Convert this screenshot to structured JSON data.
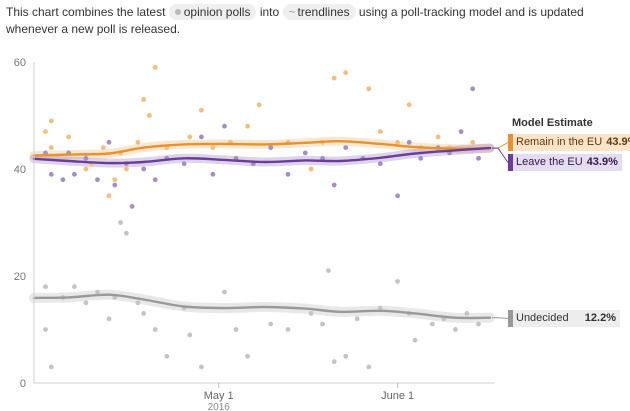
{
  "intro": {
    "before": "This chart combines the latest",
    "chip_polls": "opinion polls",
    "middle": "into",
    "chip_trend": "trendlines",
    "after": "using a poll-tracking model and is updated whenever a new poll is released."
  },
  "legend": {
    "title": "Model Estimate",
    "remain_label": "Remain in the EU",
    "remain_value": "43.9%",
    "leave_label": "Leave the EU",
    "leave_value": "43.9%",
    "undecided_label": "Undecided",
    "undecided_value": "12.2%"
  },
  "colors": {
    "remain": "#e8922e",
    "remain_point": "#f2be7e",
    "leave": "#6a3d9a",
    "leave_point": "#a48fc4",
    "undecided": "#999999",
    "undecided_point": "#c4c4c4",
    "band": "#e8e8e8"
  },
  "chart_data": {
    "type": "scatter",
    "x_range": [
      "2016-03-30",
      "2016-06-17"
    ],
    "y_range": [
      0,
      60
    ],
    "y_ticks": [
      0,
      20,
      40,
      60
    ],
    "x_ticks": [
      {
        "date": "2016-05-01",
        "label": "May 1",
        "sublabel": "2016"
      },
      {
        "date": "2016-06-01",
        "label": "June 1",
        "sublabel": ""
      }
    ],
    "grid": false,
    "series": [
      {
        "name": "Remain in the EU",
        "trend": [
          [
            "2016-03-30",
            42.5
          ],
          [
            "2016-04-05",
            42.7
          ],
          [
            "2016-04-12",
            42.9
          ],
          [
            "2016-04-18",
            44
          ],
          [
            "2016-04-25",
            44.6
          ],
          [
            "2016-05-02",
            44.7
          ],
          [
            "2016-05-09",
            44.6
          ],
          [
            "2016-05-16",
            44.9
          ],
          [
            "2016-05-22",
            45.2
          ],
          [
            "2016-05-29",
            44.7
          ],
          [
            "2016-06-04",
            44.1
          ],
          [
            "2016-06-11",
            43.8
          ],
          [
            "2016-06-17",
            43.9
          ]
        ],
        "points": [
          [
            "2016-04-01",
            47
          ],
          [
            "2016-04-02",
            49
          ],
          [
            "2016-04-02",
            44
          ],
          [
            "2016-04-05",
            46
          ],
          [
            "2016-04-08",
            40
          ],
          [
            "2016-04-09",
            41
          ],
          [
            "2016-04-11",
            44
          ],
          [
            "2016-04-12",
            35
          ],
          [
            "2016-04-13",
            38
          ],
          [
            "2016-04-14",
            43
          ],
          [
            "2016-04-15",
            40
          ],
          [
            "2016-04-17",
            45
          ],
          [
            "2016-04-18",
            53
          ],
          [
            "2016-04-19",
            50
          ],
          [
            "2016-04-20",
            59
          ],
          [
            "2016-04-22",
            44
          ],
          [
            "2016-04-26",
            46
          ],
          [
            "2016-04-28",
            51
          ],
          [
            "2016-04-30",
            44
          ],
          [
            "2016-05-03",
            45
          ],
          [
            "2016-05-06",
            48
          ],
          [
            "2016-05-08",
            52
          ],
          [
            "2016-05-10",
            44
          ],
          [
            "2016-05-13",
            45
          ],
          [
            "2016-05-17",
            40
          ],
          [
            "2016-05-19",
            45
          ],
          [
            "2016-05-21",
            57
          ],
          [
            "2016-05-23",
            58
          ],
          [
            "2016-05-27",
            55
          ],
          [
            "2016-05-29",
            47
          ],
          [
            "2016-06-01",
            45
          ],
          [
            "2016-06-03",
            52
          ],
          [
            "2016-06-05",
            44
          ],
          [
            "2016-06-08",
            46
          ],
          [
            "2016-06-10",
            44
          ],
          [
            "2016-06-12",
            47
          ],
          [
            "2016-06-14",
            45
          ],
          [
            "2016-06-15",
            42
          ]
        ]
      },
      {
        "name": "Leave the EU",
        "trend": [
          [
            "2016-03-30",
            41.9
          ],
          [
            "2016-04-05",
            41.5
          ],
          [
            "2016-04-12",
            41.1
          ],
          [
            "2016-04-18",
            41.3
          ],
          [
            "2016-04-25",
            42
          ],
          [
            "2016-05-02",
            41.7
          ],
          [
            "2016-05-09",
            41.3
          ],
          [
            "2016-05-16",
            41.6
          ],
          [
            "2016-05-22",
            41.5
          ],
          [
            "2016-05-29",
            42.1
          ],
          [
            "2016-06-04",
            42.9
          ],
          [
            "2016-06-11",
            43.5
          ],
          [
            "2016-06-17",
            43.9
          ]
        ],
        "points": [
          [
            "2016-04-01",
            43
          ],
          [
            "2016-04-02",
            39
          ],
          [
            "2016-04-04",
            38
          ],
          [
            "2016-04-05",
            43
          ],
          [
            "2016-04-06",
            39
          ],
          [
            "2016-04-08",
            42
          ],
          [
            "2016-04-10",
            38
          ],
          [
            "2016-04-12",
            45
          ],
          [
            "2016-04-13",
            37
          ],
          [
            "2016-04-15",
            41
          ],
          [
            "2016-04-16",
            33
          ],
          [
            "2016-04-18",
            40
          ],
          [
            "2016-04-20",
            38
          ],
          [
            "2016-04-22",
            42
          ],
          [
            "2016-04-25",
            41
          ],
          [
            "2016-04-28",
            46
          ],
          [
            "2016-04-30",
            39
          ],
          [
            "2016-05-02",
            48
          ],
          [
            "2016-05-04",
            42
          ],
          [
            "2016-05-07",
            41
          ],
          [
            "2016-05-10",
            44
          ],
          [
            "2016-05-13",
            39
          ],
          [
            "2016-05-16",
            43
          ],
          [
            "2016-05-19",
            42
          ],
          [
            "2016-05-21",
            37
          ],
          [
            "2016-05-23",
            44
          ],
          [
            "2016-05-26",
            42
          ],
          [
            "2016-05-29",
            41
          ],
          [
            "2016-06-01",
            35
          ],
          [
            "2016-06-03",
            45
          ],
          [
            "2016-06-05",
            42
          ],
          [
            "2016-06-08",
            44
          ],
          [
            "2016-06-10",
            43
          ],
          [
            "2016-06-12",
            47
          ],
          [
            "2016-06-14",
            55
          ],
          [
            "2016-06-15",
            42
          ]
        ]
      },
      {
        "name": "Undecided",
        "trend": [
          [
            "2016-03-30",
            15.9
          ],
          [
            "2016-04-05",
            16
          ],
          [
            "2016-04-12",
            16.5
          ],
          [
            "2016-04-18",
            15.6
          ],
          [
            "2016-04-25",
            14.3
          ],
          [
            "2016-05-02",
            14
          ],
          [
            "2016-05-09",
            14.2
          ],
          [
            "2016-05-16",
            13.9
          ],
          [
            "2016-05-22",
            13.3
          ],
          [
            "2016-05-29",
            13.5
          ],
          [
            "2016-06-04",
            13
          ],
          [
            "2016-06-11",
            12.2
          ],
          [
            "2016-06-17",
            12.2
          ]
        ],
        "points": [
          [
            "2016-04-01",
            18
          ],
          [
            "2016-04-01",
            10
          ],
          [
            "2016-04-02",
            3
          ],
          [
            "2016-04-04",
            16
          ],
          [
            "2016-04-06",
            18
          ],
          [
            "2016-04-08",
            15
          ],
          [
            "2016-04-10",
            17
          ],
          [
            "2016-04-12",
            12
          ],
          [
            "2016-04-13",
            16
          ],
          [
            "2016-04-14",
            30
          ],
          [
            "2016-04-15",
            28
          ],
          [
            "2016-04-17",
            15
          ],
          [
            "2016-04-18",
            13
          ],
          [
            "2016-04-20",
            10
          ],
          [
            "2016-04-22",
            5
          ],
          [
            "2016-04-25",
            14
          ],
          [
            "2016-04-26",
            9
          ],
          [
            "2016-04-28",
            3
          ],
          [
            "2016-05-02",
            17
          ],
          [
            "2016-05-04",
            10
          ],
          [
            "2016-05-06",
            5
          ],
          [
            "2016-05-10",
            11
          ],
          [
            "2016-05-13",
            10
          ],
          [
            "2016-05-17",
            13
          ],
          [
            "2016-05-19",
            11
          ],
          [
            "2016-05-20",
            21
          ],
          [
            "2016-05-21",
            4
          ],
          [
            "2016-05-23",
            5
          ],
          [
            "2016-05-25",
            12
          ],
          [
            "2016-05-27",
            3
          ],
          [
            "2016-05-29",
            14
          ],
          [
            "2016-06-01",
            19
          ],
          [
            "2016-06-03",
            13
          ],
          [
            "2016-06-04",
            8
          ],
          [
            "2016-06-07",
            11
          ],
          [
            "2016-06-09",
            12
          ],
          [
            "2016-06-11",
            10
          ],
          [
            "2016-06-13",
            13
          ],
          [
            "2016-06-15",
            11
          ]
        ]
      }
    ]
  }
}
